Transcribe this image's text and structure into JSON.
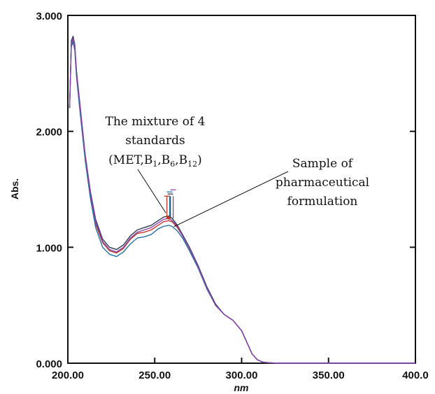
{
  "chart_data": {
    "type": "line",
    "title": "",
    "xlabel": "nm",
    "ylabel": "Abs.",
    "xlim": [
      200,
      400
    ],
    "ylim": [
      0,
      3
    ],
    "x_ticks": [
      "200.00",
      "250.00",
      "300.00",
      "350.00",
      "400.0"
    ],
    "y_ticks": [
      "0.000",
      "1.000",
      "2.000",
      "3.000"
    ],
    "grid": false,
    "series": [
      {
        "color": "#c0392b",
        "x": [
          201,
          202,
          203,
          204,
          205,
          207,
          210,
          213,
          216,
          220,
          224,
          228,
          232,
          236,
          240,
          244,
          248,
          252,
          255,
          258,
          260,
          263,
          266,
          270,
          275,
          280,
          285,
          290,
          295,
          300,
          303,
          306,
          309,
          312,
          315,
          320,
          330,
          350,
          400
        ],
        "y": [
          2.2,
          2.75,
          2.79,
          2.72,
          2.5,
          2.2,
          1.78,
          1.45,
          1.2,
          1.04,
          0.97,
          0.95,
          0.99,
          1.07,
          1.12,
          1.13,
          1.15,
          1.19,
          1.22,
          1.23,
          1.22,
          1.17,
          1.1,
          0.99,
          0.83,
          0.65,
          0.5,
          0.42,
          0.37,
          0.28,
          0.18,
          0.08,
          0.03,
          0.01,
          0.005,
          0.0,
          0.0,
          0.0,
          0.0
        ]
      },
      {
        "color": "#2c3e50",
        "x": [
          201,
          202,
          203,
          204,
          205,
          207,
          210,
          213,
          216,
          220,
          224,
          228,
          232,
          236,
          240,
          244,
          248,
          252,
          255,
          258,
          260,
          263,
          266,
          270,
          275,
          280,
          285,
          290,
          295,
          300,
          303,
          306,
          309,
          312,
          315,
          320,
          330,
          350,
          400
        ],
        "y": [
          2.2,
          2.78,
          2.82,
          2.75,
          2.52,
          2.23,
          1.8,
          1.48,
          1.24,
          1.07,
          1.0,
          0.98,
          1.02,
          1.1,
          1.15,
          1.17,
          1.19,
          1.23,
          1.26,
          1.27,
          1.25,
          1.19,
          1.11,
          1.0,
          0.84,
          0.66,
          0.51,
          0.42,
          0.37,
          0.28,
          0.18,
          0.08,
          0.03,
          0.01,
          0.005,
          0.0,
          0.0,
          0.0,
          0.0
        ]
      },
      {
        "color": "#2471a3",
        "x": [
          201,
          202,
          203,
          204,
          205,
          207,
          210,
          213,
          216,
          220,
          224,
          228,
          232,
          236,
          240,
          244,
          248,
          252,
          255,
          258,
          260,
          263,
          266,
          270,
          275,
          280,
          285,
          290,
          295,
          300,
          303,
          306,
          309,
          312,
          315,
          320,
          330,
          350,
          400
        ],
        "y": [
          2.2,
          2.73,
          2.77,
          2.7,
          2.47,
          2.17,
          1.75,
          1.42,
          1.17,
          1.0,
          0.94,
          0.92,
          0.96,
          1.03,
          1.08,
          1.09,
          1.11,
          1.16,
          1.18,
          1.19,
          1.18,
          1.14,
          1.08,
          0.97,
          0.82,
          0.64,
          0.5,
          0.42,
          0.37,
          0.28,
          0.18,
          0.08,
          0.03,
          0.01,
          0.005,
          0.0,
          0.0,
          0.0,
          0.0
        ]
      },
      {
        "color": "#8e44ad",
        "x": [
          201,
          202,
          203,
          204,
          205,
          207,
          210,
          213,
          216,
          220,
          224,
          228,
          232,
          236,
          240,
          244,
          248,
          252,
          255,
          258,
          260,
          263,
          266,
          270,
          275,
          280,
          285,
          290,
          295,
          300,
          303,
          306,
          309,
          312,
          315,
          320,
          330,
          350,
          400
        ],
        "y": [
          2.2,
          2.76,
          2.8,
          2.73,
          2.5,
          2.21,
          1.79,
          1.46,
          1.22,
          1.05,
          0.98,
          0.96,
          1.0,
          1.08,
          1.13,
          1.15,
          1.17,
          1.21,
          1.24,
          1.25,
          1.23,
          1.18,
          1.1,
          0.99,
          0.83,
          0.65,
          0.5,
          0.42,
          0.37,
          0.28,
          0.18,
          0.08,
          0.03,
          0.01,
          0.005,
          0.0,
          0.0,
          0.0,
          0.0
        ]
      }
    ],
    "annotations": [
      {
        "lines": [
          "The mixture of 4",
          "standards"
        ],
        "formula": {
          "open": "(MET,B",
          "sub1": "1",
          "mid1": ",B",
          "sub2": "6",
          "mid2": ",B",
          "sub3": "12",
          "close": ")"
        },
        "points_to": {
          "x": 258,
          "y": 1.26
        }
      },
      {
        "lines": [
          "Sample of",
          "pharmaceutical",
          "formulation"
        ],
        "points_to": {
          "x": 259,
          "y": 1.19
        }
      }
    ]
  }
}
